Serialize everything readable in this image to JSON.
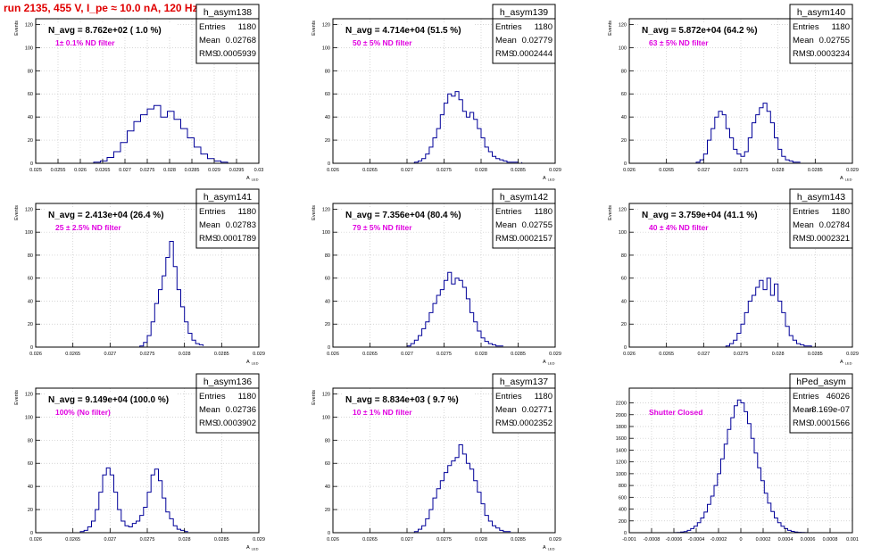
{
  "title": "run 2135,   455 V, I_pe ≈ 10.0 nA, 120 Hz",
  "colors": {
    "title": "#e00000",
    "annotation": "#e000e0",
    "histogram": "#000099",
    "grid": "#c8c8c8"
  },
  "stats_labels": {
    "entries": "Entries",
    "mean": "Mean",
    "rms": "RMS"
  },
  "chart_data": [
    {
      "type": "bar",
      "name": "h_asym138",
      "nlabel": "N_avg = 8.762e+02 ( 1.0 %)",
      "annotation": "1± 0.1% ND filter",
      "entries": "1180",
      "mean": "0.02768",
      "rms": "0.0005939",
      "xlabel": "A_LED",
      "ylabel": "Events",
      "xlim": [
        0.025,
        0.03
      ],
      "ylim": [
        0,
        125
      ],
      "grid": true,
      "xticks": [
        "0.025",
        "0.0255",
        "0.026",
        "0.0265",
        "0.027",
        "0.0275",
        "0.028",
        "0.0285",
        "0.029",
        "0.0295",
        "0.03"
      ],
      "xtickvals": [
        0.025,
        0.0255,
        0.026,
        0.0265,
        0.027,
        0.0275,
        0.028,
        0.0285,
        0.029,
        0.0295,
        0.03
      ],
      "yticks": [
        "0",
        "20",
        "40",
        "60",
        "80",
        "100",
        "120"
      ],
      "ytickvals": [
        0,
        20,
        40,
        60,
        80,
        100,
        120
      ],
      "bin_edges": [
        0.0263,
        0.02645,
        0.0266,
        0.02675,
        0.0269,
        0.02705,
        0.0272,
        0.02735,
        0.0275,
        0.02765,
        0.0278,
        0.02795,
        0.0281,
        0.02825,
        0.0284,
        0.02855,
        0.0287,
        0.02885,
        0.029,
        0.02915,
        0.0293
      ],
      "values": [
        1,
        2,
        5,
        10,
        18,
        28,
        36,
        42,
        47,
        50,
        40,
        45,
        38,
        30,
        22,
        14,
        8,
        4,
        2,
        1
      ]
    },
    {
      "type": "bar",
      "name": "h_asym139",
      "nlabel": "N_avg = 4.714e+04 (51.5 %)",
      "annotation": "50 ± 5% ND filter",
      "entries": "1180",
      "mean": "0.02779",
      "rms": "0.0002444",
      "xlabel": "A_LED",
      "ylabel": "Events",
      "xlim": [
        0.026,
        0.029
      ],
      "ylim": [
        0,
        125
      ],
      "grid": true,
      "xticks": [
        "0.026",
        "0.0265",
        "0.027",
        "0.0275",
        "0.028",
        "0.0285",
        "0.029"
      ],
      "xtickvals": [
        0.026,
        0.0265,
        0.027,
        0.0275,
        0.028,
        0.0285,
        0.029
      ],
      "yticks": [
        "0",
        "20",
        "40",
        "60",
        "80",
        "100",
        "120"
      ],
      "ytickvals": [
        0,
        20,
        40,
        60,
        80,
        100,
        120
      ],
      "bin_edges": [
        0.0271,
        0.02715,
        0.0272,
        0.02725,
        0.0273,
        0.02735,
        0.0274,
        0.02745,
        0.0275,
        0.02755,
        0.0276,
        0.02765,
        0.0277,
        0.02775,
        0.0278,
        0.02785,
        0.0279,
        0.02795,
        0.028,
        0.02805,
        0.0281,
        0.02815,
        0.0282,
        0.02825,
        0.0283,
        0.02835,
        0.0284,
        0.02845,
        0.0285,
        0.02855
      ],
      "values": [
        1,
        2,
        4,
        8,
        14,
        22,
        30,
        42,
        52,
        60,
        58,
        62,
        55,
        45,
        40,
        44,
        38,
        30,
        22,
        14,
        10,
        6,
        4,
        3,
        2,
        1,
        1,
        1,
        0,
        1
      ]
    },
    {
      "type": "bar",
      "name": "h_asym140",
      "nlabel": "N_avg = 5.872e+04 (64.2 %)",
      "annotation": "63 ± 5% ND filter",
      "entries": "1180",
      "mean": "0.02755",
      "rms": "0.0003234",
      "xlabel": "A_LED",
      "ylabel": "Events",
      "xlim": [
        0.026,
        0.029
      ],
      "ylim": [
        0,
        125
      ],
      "grid": true,
      "xticks": [
        "0.026",
        "0.0265",
        "0.027",
        "0.0275",
        "0.028",
        "0.0285",
        "0.029"
      ],
      "xtickvals": [
        0.026,
        0.0265,
        0.027,
        0.0275,
        0.028,
        0.0285,
        0.029
      ],
      "yticks": [
        "0",
        "20",
        "40",
        "60",
        "80",
        "100",
        "120"
      ],
      "ytickvals": [
        0,
        20,
        40,
        60,
        80,
        100,
        120
      ],
      "bin_edges": [
        0.0269,
        0.02695,
        0.027,
        0.02705,
        0.0271,
        0.02715,
        0.0272,
        0.02725,
        0.0273,
        0.02735,
        0.0274,
        0.02745,
        0.0275,
        0.02755,
        0.0276,
        0.02765,
        0.0277,
        0.02775,
        0.0278,
        0.02785,
        0.0279,
        0.02795,
        0.028,
        0.02805,
        0.0281,
        0.02815,
        0.0282,
        0.02825,
        0.0283
      ],
      "values": [
        1,
        3,
        8,
        20,
        30,
        40,
        45,
        42,
        30,
        22,
        12,
        8,
        6,
        10,
        22,
        35,
        42,
        48,
        52,
        45,
        35,
        22,
        12,
        6,
        3,
        2,
        1,
        1,
        1
      ]
    },
    {
      "type": "bar",
      "name": "h_asym141",
      "nlabel": "N_avg = 2.413e+04 (26.4 %)",
      "annotation": "25 ± 2.5% ND filter",
      "entries": "1180",
      "mean": "0.02783",
      "rms": "0.0001789",
      "xlabel": "A_LED",
      "ylabel": "Events",
      "xlim": [
        0.026,
        0.029
      ],
      "ylim": [
        0,
        125
      ],
      "grid": true,
      "xticks": [
        "0.026",
        "0.0265",
        "0.027",
        "0.0275",
        "0.028",
        "0.0285",
        "0.029"
      ],
      "xtickvals": [
        0.026,
        0.0265,
        0.027,
        0.0275,
        0.028,
        0.0285,
        0.029
      ],
      "yticks": [
        "0",
        "20",
        "40",
        "60",
        "80",
        "100",
        "120"
      ],
      "ytickvals": [
        0,
        20,
        40,
        60,
        80,
        100,
        120
      ],
      "bin_edges": [
        0.0274,
        0.02745,
        0.0275,
        0.02755,
        0.0276,
        0.02765,
        0.0277,
        0.02775,
        0.0278,
        0.02785,
        0.0279,
        0.02795,
        0.028,
        0.02805,
        0.0281,
        0.02815,
        0.0282,
        0.02825
      ],
      "values": [
        1,
        4,
        10,
        22,
        38,
        50,
        62,
        78,
        92,
        70,
        50,
        35,
        22,
        12,
        6,
        3,
        2,
        1
      ]
    },
    {
      "type": "bar",
      "name": "h_asym142",
      "nlabel": "N_avg = 7.356e+04 (80.4 %)",
      "annotation": "79 ± 5% ND filter",
      "entries": "1180",
      "mean": "0.02755",
      "rms": "0.0002157",
      "xlabel": "A_LED",
      "ylabel": "Events",
      "xlim": [
        0.026,
        0.029
      ],
      "ylim": [
        0,
        125
      ],
      "grid": true,
      "xticks": [
        "0.026",
        "0.0265",
        "0.027",
        "0.0275",
        "0.028",
        "0.0285",
        "0.029"
      ],
      "xtickvals": [
        0.026,
        0.0265,
        0.027,
        0.0275,
        0.028,
        0.0285,
        0.029
      ],
      "yticks": [
        "0",
        "20",
        "40",
        "60",
        "80",
        "100",
        "120"
      ],
      "ytickvals": [
        0,
        20,
        40,
        60,
        80,
        100,
        120
      ],
      "bin_edges": [
        0.027,
        0.02705,
        0.0271,
        0.02715,
        0.0272,
        0.02725,
        0.0273,
        0.02735,
        0.0274,
        0.02745,
        0.0275,
        0.02755,
        0.0276,
        0.02765,
        0.0277,
        0.02775,
        0.0278,
        0.02785,
        0.0279,
        0.02795,
        0.028,
        0.02805,
        0.0281,
        0.02815,
        0.0282,
        0.02825,
        0.0283
      ],
      "values": [
        1,
        3,
        6,
        10,
        16,
        22,
        30,
        38,
        45,
        50,
        58,
        65,
        55,
        60,
        58,
        52,
        42,
        30,
        22,
        14,
        8,
        5,
        3,
        2,
        1,
        1,
        1
      ]
    },
    {
      "type": "bar",
      "name": "h_asym143",
      "nlabel": "N_avg = 3.759e+04 (41.1 %)",
      "annotation": "40 ± 4% ND filter",
      "entries": "1180",
      "mean": "0.02784",
      "rms": "0.0002321",
      "xlabel": "A_LED",
      "ylabel": "Events",
      "xlim": [
        0.026,
        0.029
      ],
      "ylim": [
        0,
        125
      ],
      "grid": true,
      "xticks": [
        "0.026",
        "0.0265",
        "0.027",
        "0.0275",
        "0.028",
        "0.0285",
        "0.029"
      ],
      "xtickvals": [
        0.026,
        0.0265,
        0.027,
        0.0275,
        0.028,
        0.0285,
        0.029
      ],
      "yticks": [
        "0",
        "20",
        "40",
        "60",
        "80",
        "100",
        "120"
      ],
      "ytickvals": [
        0,
        20,
        40,
        60,
        80,
        100,
        120
      ],
      "bin_edges": [
        0.0273,
        0.02735,
        0.0274,
        0.02745,
        0.0275,
        0.02755,
        0.0276,
        0.02765,
        0.0277,
        0.02775,
        0.0278,
        0.02785,
        0.0279,
        0.02795,
        0.028,
        0.02805,
        0.0281,
        0.02815,
        0.0282,
        0.02825,
        0.0283,
        0.02835,
        0.0284,
        0.02845,
        0.0285
      ],
      "values": [
        1,
        3,
        6,
        12,
        20,
        30,
        40,
        45,
        52,
        58,
        50,
        60,
        45,
        55,
        40,
        30,
        18,
        10,
        6,
        3,
        2,
        1,
        1,
        0,
        1
      ]
    },
    {
      "type": "bar",
      "name": "h_asym136",
      "nlabel": "N_avg = 9.149e+04 (100.0 %)",
      "annotation": "100% (No filter)",
      "entries": "1180",
      "mean": "0.02736",
      "rms": "0.0003902",
      "xlabel": "A_LED",
      "ylabel": "Events",
      "xlim": [
        0.026,
        0.029
      ],
      "ylim": [
        0,
        125
      ],
      "grid": true,
      "xticks": [
        "0.026",
        "0.0265",
        "0.027",
        "0.0275",
        "0.028",
        "0.0285",
        "0.029"
      ],
      "xtickvals": [
        0.026,
        0.0265,
        0.027,
        0.0275,
        0.028,
        0.0285,
        0.029
      ],
      "yticks": [
        "0",
        "20",
        "40",
        "60",
        "80",
        "100",
        "120"
      ],
      "ytickvals": [
        0,
        20,
        40,
        60,
        80,
        100,
        120
      ],
      "bin_edges": [
        0.0266,
        0.02665,
        0.0267,
        0.02675,
        0.0268,
        0.02685,
        0.0269,
        0.02695,
        0.027,
        0.02705,
        0.0271,
        0.02715,
        0.0272,
        0.02725,
        0.0273,
        0.02735,
        0.0274,
        0.02745,
        0.0275,
        0.02755,
        0.0276,
        0.02765,
        0.0277,
        0.02775,
        0.0278,
        0.02785,
        0.0279,
        0.02795,
        0.028,
        0.02805
      ],
      "values": [
        1,
        2,
        5,
        10,
        20,
        35,
        50,
        56,
        50,
        35,
        20,
        10,
        6,
        5,
        8,
        10,
        15,
        22,
        35,
        50,
        55,
        45,
        30,
        18,
        12,
        6,
        3,
        2,
        1,
        1
      ]
    },
    {
      "type": "bar",
      "name": "h_asym137",
      "nlabel": "N_avg = 8.834e+03 ( 9.7 %)",
      "annotation": "10 ± 1% ND filter",
      "entries": "1180",
      "mean": "0.02771",
      "rms": "0.0002352",
      "xlabel": "A_LED",
      "ylabel": "Events",
      "xlim": [
        0.026,
        0.029
      ],
      "ylim": [
        0,
        125
      ],
      "grid": true,
      "xticks": [
        "0.026",
        "0.0265",
        "0.027",
        "0.0275",
        "0.028",
        "0.0285",
        "0.029"
      ],
      "xtickvals": [
        0.026,
        0.0265,
        0.027,
        0.0275,
        0.028,
        0.0285,
        0.029
      ],
      "yticks": [
        "0",
        "20",
        "40",
        "60",
        "80",
        "100",
        "120"
      ],
      "ytickvals": [
        0,
        20,
        40,
        60,
        80,
        100,
        120
      ],
      "bin_edges": [
        0.0271,
        0.02715,
        0.0272,
        0.02725,
        0.0273,
        0.02735,
        0.0274,
        0.02745,
        0.0275,
        0.02755,
        0.0276,
        0.02765,
        0.0277,
        0.02775,
        0.0278,
        0.02785,
        0.0279,
        0.02795,
        0.028,
        0.02805,
        0.0281,
        0.02815,
        0.0282,
        0.02825,
        0.0283,
        0.02835,
        0.0284
      ],
      "values": [
        1,
        3,
        6,
        12,
        20,
        30,
        38,
        45,
        52,
        58,
        62,
        65,
        76,
        68,
        60,
        55,
        45,
        35,
        25,
        15,
        10,
        6,
        4,
        2,
        1,
        1,
        1
      ]
    },
    {
      "type": "bar",
      "name": "hPed_asym",
      "nlabel": "",
      "annotation": "Shutter Closed",
      "entries": "46026",
      "mean": "-8.169e-07",
      "rms": "0.0001566",
      "xlabel": "",
      "ylabel": "",
      "xlim": [
        -0.001,
        0.001
      ],
      "ylim": [
        0,
        2450
      ],
      "grid": true,
      "xticks": [
        "-0.001",
        "-0.0008",
        "-0.0006",
        "-0.0004",
        "-0.0002",
        "0",
        "0.0002",
        "0.0004",
        "0.0006",
        "0.0008",
        "0.001"
      ],
      "xtickvals": [
        -0.001,
        -0.0008,
        -0.0006,
        -0.0004,
        -0.0002,
        0,
        0.0002,
        0.0004,
        0.0006,
        0.0008,
        0.001
      ],
      "yticks": [
        "0",
        "200",
        "400",
        "600",
        "800",
        "1000",
        "1200",
        "1400",
        "1600",
        "1800",
        "2000",
        "2200"
      ],
      "ytickvals": [
        0,
        200,
        400,
        600,
        800,
        1000,
        1200,
        1400,
        1600,
        1800,
        2000,
        2200
      ],
      "bin_edges": [
        -0.0006,
        -0.00057,
        -0.00054,
        -0.00051,
        -0.00048,
        -0.00045,
        -0.00042,
        -0.00039,
        -0.00036,
        -0.00033,
        -0.0003,
        -0.00027,
        -0.00024,
        -0.00021,
        -0.00018,
        -0.00015,
        -0.00012,
        -9e-05,
        -6e-05,
        -3e-05,
        0,
        3e-05,
        6e-05,
        9e-05,
        0.00012,
        0.00015,
        0.00018,
        0.00021,
        0.00024,
        0.00027,
        0.0003,
        0.00033,
        0.00036,
        0.00039,
        0.00042,
        0.00045,
        0.00048,
        0.00051,
        0.00054,
        0.00057,
        0.0006
      ],
      "values": [
        2,
        5,
        10,
        20,
        40,
        70,
        110,
        170,
        250,
        350,
        480,
        620,
        800,
        1000,
        1250,
        1500,
        1750,
        1950,
        2150,
        2250,
        2200,
        2050,
        1850,
        1600,
        1350,
        1100,
        880,
        670,
        500,
        360,
        250,
        170,
        110,
        70,
        40,
        22,
        12,
        6,
        3,
        1
      ]
    }
  ]
}
